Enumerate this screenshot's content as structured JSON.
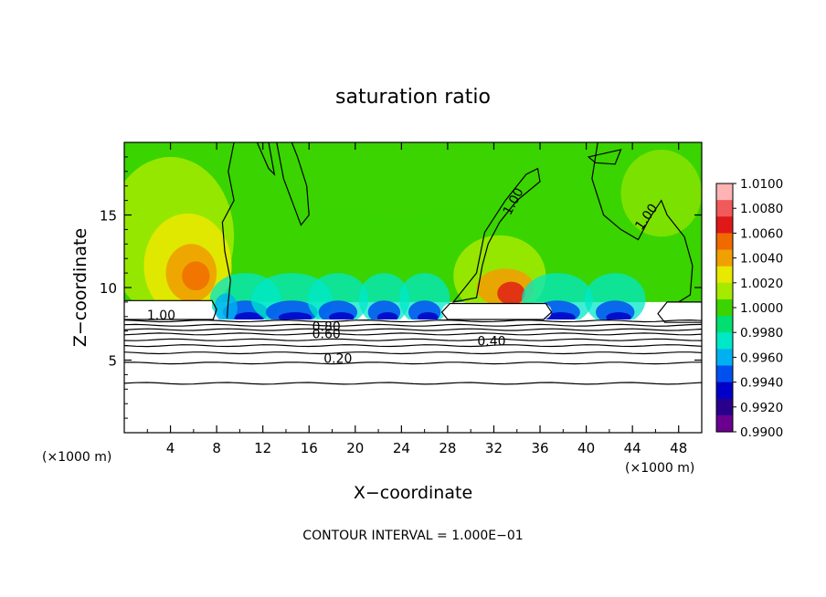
{
  "chart_data": {
    "type": "heatmap",
    "title": "saturation ratio",
    "xlabel": "X−coordinate",
    "ylabel": "Z−coordinate",
    "x_unit_left": "(×1000 m)",
    "x_unit_right": "(×1000 m)",
    "footer": "CONTOUR INTERVAL = 1.000E−01",
    "xlim": [
      0,
      50
    ],
    "ylim": [
      0,
      20
    ],
    "x_ticks": [
      4,
      8,
      12,
      16,
      20,
      24,
      28,
      32,
      36,
      40,
      44,
      48
    ],
    "y_ticks": [
      5,
      10,
      15
    ],
    "colorbar": {
      "labels": [
        "1.0100",
        "1.0080",
        "1.0060",
        "1.0040",
        "1.0020",
        "1.0000",
        "0.9980",
        "0.9960",
        "0.9940",
        "0.9920",
        "0.9900"
      ],
      "colors": [
        "#ffb3b3",
        "#f05a5a",
        "#e01818",
        "#f06a00",
        "#f0a000",
        "#e8e800",
        "#a6ea00",
        "#3cd400",
        "#00e070",
        "#00e8c8",
        "#00b0f0",
        "#0050f0",
        "#0000c8",
        "#28008c",
        "#6a0090"
      ]
    },
    "contour_labels": [
      {
        "text": "1.00",
        "x": 3.2,
        "z": 7.8
      },
      {
        "text": "1.00",
        "x": 34.0,
        "z": 15.8,
        "rot": -62
      },
      {
        "text": "1.00",
        "x": 45.5,
        "z": 14.7,
        "rot": -55
      },
      {
        "text": "0.80",
        "x": 17.5,
        "z": 7.0
      },
      {
        "text": "0.60",
        "x": 17.5,
        "z": 6.5
      },
      {
        "text": "0.40",
        "x": 31.8,
        "z": 6.0
      },
      {
        "text": "0.20",
        "x": 18.5,
        "z": 4.8
      }
    ],
    "contour_levels": [
      0.2,
      0.3,
      0.4,
      0.5,
      0.6,
      0.7,
      0.8,
      0.9,
      1.0
    ]
  }
}
